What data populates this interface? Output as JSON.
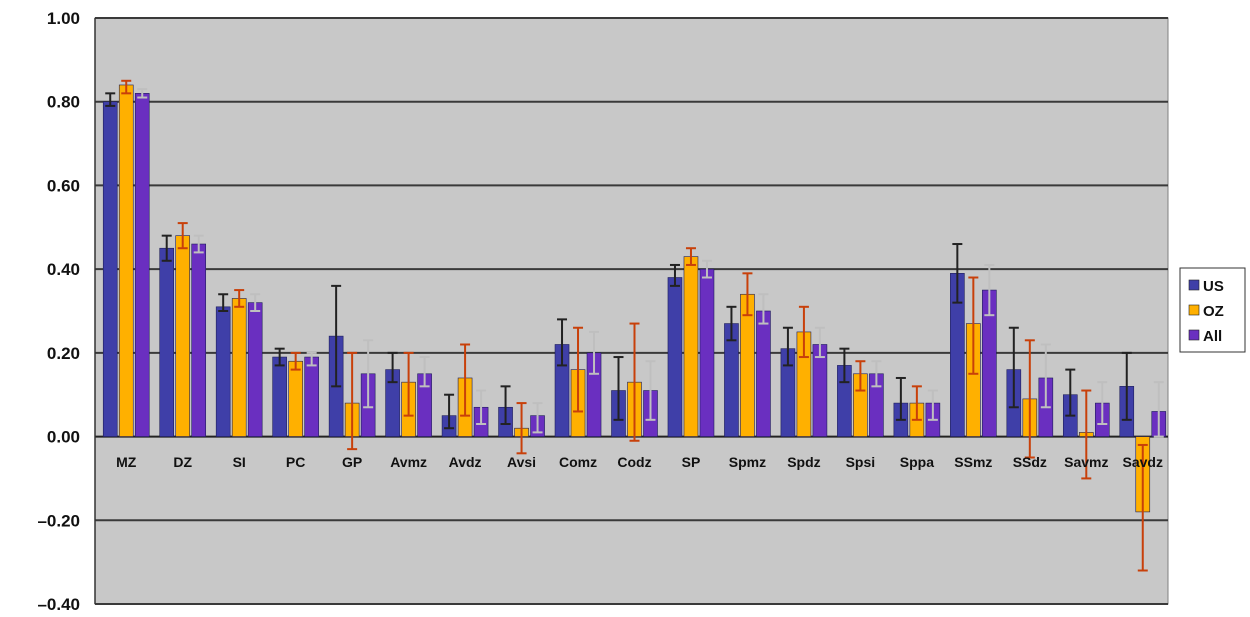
{
  "chart_data": {
    "type": "bar",
    "title": "",
    "xlabel": "",
    "ylabel": "",
    "ylim": [
      -0.4,
      1.0
    ],
    "yticks": [
      1.0,
      0.8,
      0.6,
      0.4,
      0.2,
      0.0,
      -0.2,
      -0.4
    ],
    "ytick_labels": [
      "1.00",
      "0.80",
      "0.60",
      "0.40",
      "0.20",
      "0.00",
      "–0.20",
      "–0.40"
    ],
    "grid": true,
    "legend_position": "right",
    "categories": [
      "MZ",
      "DZ",
      "SI",
      "PC",
      "GP",
      "Avmz",
      "Avdz",
      "Avsi",
      "Comz",
      "Codz",
      "SP",
      "Spmz",
      "Spdz",
      "Spsi",
      "Sppa",
      "SSmz",
      "SSdz",
      "Savmz",
      "Savdz"
    ],
    "series": [
      {
        "name": "US",
        "color": "#3f3fa8",
        "error_color": "#222222",
        "values": [
          0.8,
          0.45,
          0.31,
          0.19,
          0.24,
          0.16,
          0.05,
          0.07,
          0.22,
          0.11,
          0.38,
          0.27,
          0.21,
          0.17,
          0.08,
          0.39,
          0.16,
          0.1,
          0.12
        ],
        "err_low": [
          0.79,
          0.42,
          0.3,
          0.17,
          0.12,
          0.13,
          0.02,
          0.03,
          0.17,
          0.04,
          0.36,
          0.23,
          0.17,
          0.13,
          0.04,
          0.32,
          0.07,
          0.05,
          0.04
        ],
        "err_high": [
          0.82,
          0.48,
          0.34,
          0.21,
          0.36,
          0.2,
          0.1,
          0.12,
          0.28,
          0.19,
          0.41,
          0.31,
          0.26,
          0.21,
          0.14,
          0.46,
          0.26,
          0.16,
          0.2
        ]
      },
      {
        "name": "OZ",
        "color": "#ffb000",
        "error_color": "#c8400a",
        "values": [
          0.84,
          0.48,
          0.33,
          0.18,
          0.08,
          0.13,
          0.14,
          0.02,
          0.16,
          0.13,
          0.43,
          0.34,
          0.25,
          0.15,
          0.08,
          0.27,
          0.09,
          0.01,
          -0.18
        ],
        "err_low": [
          0.82,
          0.45,
          0.31,
          0.16,
          -0.03,
          0.05,
          0.05,
          -0.04,
          0.06,
          -0.01,
          0.41,
          0.29,
          0.19,
          0.11,
          0.04,
          0.15,
          -0.05,
          -0.1,
          -0.32
        ],
        "err_high": [
          0.85,
          0.51,
          0.35,
          0.2,
          0.2,
          0.2,
          0.22,
          0.08,
          0.26,
          0.27,
          0.45,
          0.39,
          0.31,
          0.18,
          0.12,
          0.38,
          0.23,
          0.11,
          -0.02
        ]
      },
      {
        "name": "All",
        "color": "#6a2fc0",
        "error_color": "#bfbfbf",
        "values": [
          0.82,
          0.46,
          0.32,
          0.19,
          0.15,
          0.15,
          0.07,
          0.05,
          0.2,
          0.11,
          0.4,
          0.3,
          0.22,
          0.15,
          0.08,
          0.35,
          0.14,
          0.08,
          0.06
        ],
        "err_low": [
          0.81,
          0.44,
          0.3,
          0.17,
          0.07,
          0.12,
          0.03,
          0.01,
          0.15,
          0.04,
          0.38,
          0.27,
          0.19,
          0.12,
          0.04,
          0.29,
          0.07,
          0.03,
          0.0
        ],
        "err_high": [
          0.83,
          0.48,
          0.34,
          0.2,
          0.23,
          0.19,
          0.11,
          0.08,
          0.25,
          0.18,
          0.42,
          0.34,
          0.26,
          0.18,
          0.11,
          0.41,
          0.22,
          0.13,
          0.13
        ]
      }
    ]
  }
}
